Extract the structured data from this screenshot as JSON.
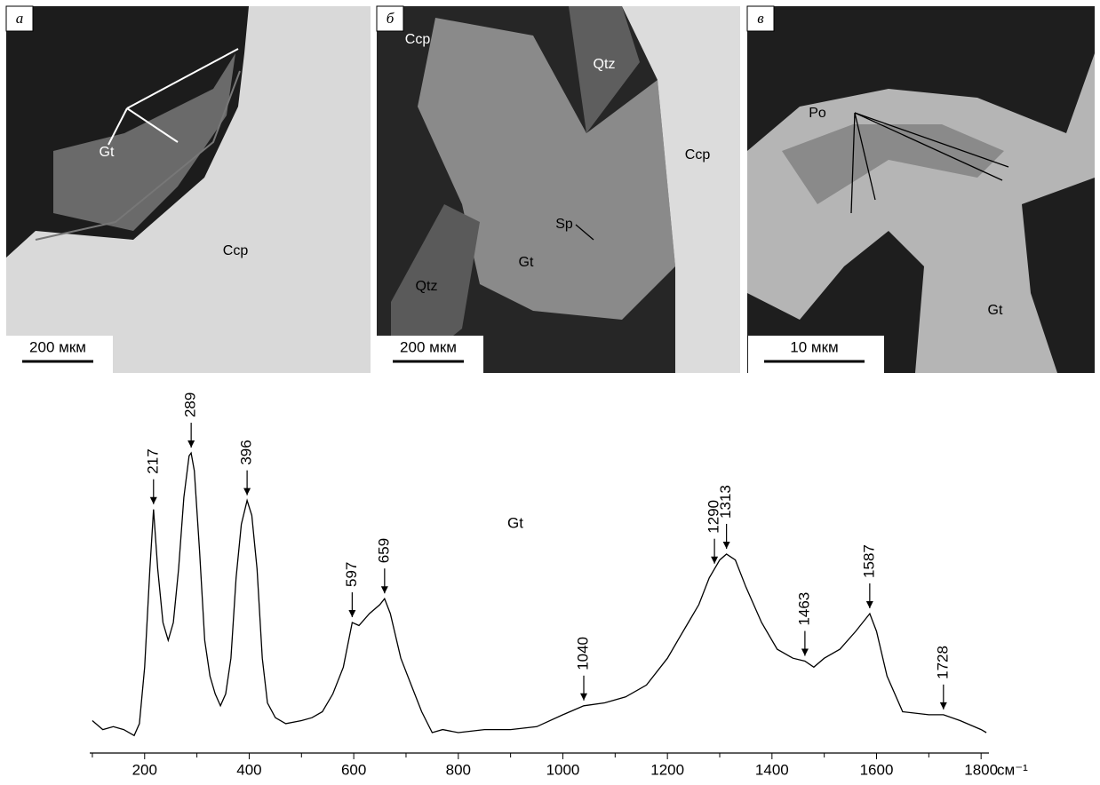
{
  "panels": [
    {
      "letter": "а",
      "labels": [
        "Gt",
        "Ccp"
      ],
      "scale": "200 мкм"
    },
    {
      "letter": "б",
      "labels": [
        "Ccp",
        "Qtz",
        "Ccp",
        "Sp",
        "Gt",
        "Qtz"
      ],
      "scale": "200 мкм"
    },
    {
      "letter": "в",
      "labels": [
        "Po",
        "Gt"
      ],
      "scale": "10 мкм"
    }
  ],
  "chart_data": {
    "type": "line",
    "annotation": "Gt",
    "xlabel": "см⁻¹",
    "x": [
      100,
      120,
      140,
      160,
      180,
      190,
      200,
      210,
      217,
      225,
      235,
      245,
      255,
      265,
      275,
      285,
      289,
      295,
      305,
      315,
      325,
      335,
      345,
      355,
      365,
      375,
      385,
      396,
      405,
      415,
      425,
      435,
      450,
      470,
      500,
      520,
      540,
      560,
      580,
      597,
      610,
      630,
      650,
      659,
      670,
      690,
      710,
      730,
      750,
      770,
      800,
      850,
      900,
      950,
      1000,
      1040,
      1080,
      1120,
      1160,
      1200,
      1220,
      1240,
      1260,
      1280,
      1300,
      1313,
      1330,
      1350,
      1380,
      1410,
      1440,
      1463,
      1480,
      1500,
      1530,
      1560,
      1587,
      1600,
      1620,
      1650,
      1700,
      1728,
      1760,
      1800,
      1810
    ],
    "series": [
      {
        "color": "#000000",
        "values": [
          7,
          4,
          5,
          4,
          2,
          6,
          25,
          58,
          78,
          58,
          40,
          34,
          40,
          58,
          82,
          96,
          97,
          91,
          64,
          34,
          22,
          16,
          12,
          16,
          28,
          55,
          73,
          81,
          76,
          58,
          28,
          13,
          8,
          6,
          7,
          8,
          10,
          16,
          25,
          40,
          39,
          43,
          46,
          48,
          43,
          28,
          19,
          10,
          3,
          4,
          3,
          4,
          4,
          5,
          9,
          12,
          13,
          15,
          19,
          28,
          34,
          40,
          46,
          55,
          61,
          63,
          61,
          52,
          40,
          31,
          28,
          27,
          25,
          28,
          31,
          37,
          43,
          37,
          22,
          10,
          9,
          9,
          7,
          4,
          3
        ]
      }
    ],
    "peaks": [
      217,
      289,
      396,
      597,
      659,
      1040,
      1290,
      1313,
      1463,
      1587,
      1728
    ],
    "xlim": [
      95,
      1815
    ],
    "ylim": [
      0,
      100
    ],
    "xticks": [
      200,
      400,
      600,
      800,
      1000,
      1200,
      1400,
      1600,
      1800
    ],
    "xminorticks": [
      100,
      300,
      500,
      700,
      900,
      1100,
      1300,
      1500,
      1700
    ]
  }
}
